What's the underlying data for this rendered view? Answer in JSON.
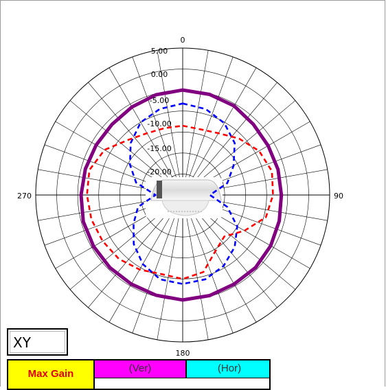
{
  "plane_label": "XY",
  "table": {
    "max_gain_label": "Max Gain",
    "ver_label": "(Ver)",
    "hor_label": "(Hor)"
  },
  "chart_data": {
    "type": "polar",
    "angle_labels": {
      "0": "0",
      "90": "90",
      "180": "180",
      "270": "270"
    },
    "ring_labels": [
      "5.00",
      "0.00",
      "-5.00",
      "-10.00",
      "-15.00",
      "-20.00"
    ],
    "r_range": [
      -25,
      10
    ],
    "grid": true,
    "series": [
      {
        "color": "#800080",
        "style": "solid",
        "points": [
          [
            0,
            0
          ],
          [
            15,
            -0.2
          ],
          [
            30,
            -0.5
          ],
          [
            45,
            -1.2
          ],
          [
            60,
            -1.5
          ],
          [
            75,
            -1.5
          ],
          [
            90,
            -1.5
          ],
          [
            105,
            -1.2
          ],
          [
            120,
            -0.8
          ],
          [
            135,
            -0.5
          ],
          [
            150,
            -0.5
          ],
          [
            165,
            -0.2
          ],
          [
            180,
            0
          ],
          [
            195,
            -0.3
          ],
          [
            210,
            -0.5
          ],
          [
            225,
            -0.5
          ],
          [
            240,
            -0.5
          ],
          [
            255,
            -0.5
          ],
          [
            270,
            -0.8
          ],
          [
            285,
            -1.0
          ],
          [
            300,
            -1.2
          ],
          [
            315,
            -1.2
          ],
          [
            330,
            -0.8
          ],
          [
            345,
            -0.3
          ]
        ]
      },
      {
        "color": "#0000ff",
        "style": "dashed",
        "points": [
          [
            0,
            -3.2
          ],
          [
            15,
            -3.8
          ],
          [
            30,
            -5.2
          ],
          [
            45,
            -7.5
          ],
          [
            60,
            -11
          ],
          [
            75,
            -14
          ],
          [
            90,
            -18.5
          ],
          [
            105,
            -14
          ],
          [
            120,
            -10
          ],
          [
            135,
            -7.5
          ],
          [
            150,
            -5.5
          ],
          [
            165,
            -4.2
          ],
          [
            180,
            -3.8
          ],
          [
            195,
            -4.2
          ],
          [
            210,
            -6
          ],
          [
            225,
            -8.5
          ],
          [
            240,
            -11.5
          ],
          [
            255,
            -14
          ],
          [
            270,
            -18.5
          ],
          [
            285,
            -13.5
          ],
          [
            300,
            -10.5
          ],
          [
            315,
            -7.5
          ],
          [
            330,
            -5
          ],
          [
            345,
            -3.8
          ]
        ]
      },
      {
        "color": "#ff0000",
        "style": "dashed",
        "points": [
          [
            0,
            -8.5
          ],
          [
            15,
            -8.8
          ],
          [
            30,
            -8
          ],
          [
            45,
            -6
          ],
          [
            60,
            -4
          ],
          [
            75,
            -3
          ],
          [
            90,
            -3.5
          ],
          [
            105,
            -4.5
          ],
          [
            120,
            -8
          ],
          [
            135,
            -11
          ],
          [
            150,
            -9.5
          ],
          [
            165,
            -6
          ],
          [
            180,
            -5
          ],
          [
            195,
            -5.5
          ],
          [
            210,
            -4.5
          ],
          [
            225,
            -3.5
          ],
          [
            240,
            -3
          ],
          [
            255,
            -2.5
          ],
          [
            270,
            -2.2
          ],
          [
            285,
            -2
          ],
          [
            300,
            -3.5
          ],
          [
            315,
            -6.5
          ],
          [
            330,
            -8
          ],
          [
            345,
            -8.5
          ]
        ]
      }
    ]
  }
}
